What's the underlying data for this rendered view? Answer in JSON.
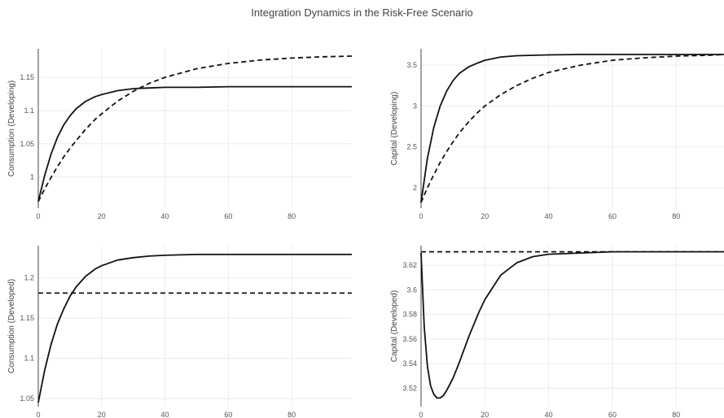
{
  "title": "Integration Dynamics in the Risk-Free Scenario",
  "chart_data": [
    {
      "type": "line",
      "ylabel": "Consumption (Developing)",
      "xlim": [
        0,
        99
      ],
      "ylim": [
        0.953,
        1.193
      ],
      "xticks": [
        0,
        20,
        40,
        60,
        80
      ],
      "yticks": [
        1,
        1.05,
        1.1,
        1.15
      ],
      "ytick_labels": [
        "1",
        "1.05",
        "1.1",
        "1.15"
      ],
      "series": [
        {
          "style": "solid",
          "x": [
            0,
            2,
            4,
            6,
            8,
            10,
            12,
            15,
            18,
            20,
            25,
            30,
            35,
            40,
            50,
            60,
            70,
            80,
            90,
            99
          ],
          "y": [
            0.963,
            1.002,
            1.034,
            1.059,
            1.078,
            1.092,
            1.103,
            1.114,
            1.121,
            1.124,
            1.13,
            1.133,
            1.134,
            1.135,
            1.135,
            1.136,
            1.136,
            1.136,
            1.136,
            1.136
          ]
        },
        {
          "style": "dashed",
          "x": [
            0,
            2,
            4,
            6,
            8,
            10,
            12,
            15,
            18,
            20,
            25,
            30,
            35,
            40,
            50,
            60,
            70,
            80,
            90,
            99
          ],
          "y": [
            0.963,
            0.982,
            0.999,
            1.015,
            1.03,
            1.043,
            1.055,
            1.072,
            1.087,
            1.095,
            1.114,
            1.129,
            1.141,
            1.15,
            1.163,
            1.171,
            1.176,
            1.179,
            1.181,
            1.182
          ]
        }
      ]
    },
    {
      "type": "line",
      "ylabel": "Capital (Developing)",
      "xlim": [
        0,
        95
      ],
      "ylim": [
        1.75,
        3.7
      ],
      "xticks": [
        0,
        20,
        40,
        60,
        80
      ],
      "yticks": [
        2,
        2.5,
        3,
        3.5
      ],
      "ytick_labels": [
        "2",
        "2.5",
        "3",
        "3.5"
      ],
      "series": [
        {
          "style": "solid",
          "x": [
            0,
            2,
            4,
            6,
            8,
            10,
            12,
            15,
            18,
            20,
            25,
            30,
            35,
            40,
            50,
            60,
            70,
            80,
            90,
            95
          ],
          "y": [
            1.82,
            2.36,
            2.74,
            3.0,
            3.18,
            3.31,
            3.4,
            3.48,
            3.53,
            3.56,
            3.6,
            3.615,
            3.62,
            3.625,
            3.63,
            3.63,
            3.63,
            3.63,
            3.63,
            3.63
          ]
        },
        {
          "style": "dashed",
          "x": [
            0,
            2,
            4,
            6,
            8,
            10,
            12,
            15,
            18,
            20,
            25,
            30,
            35,
            40,
            50,
            60,
            70,
            80,
            90,
            95
          ],
          "y": [
            1.82,
            2.0,
            2.16,
            2.31,
            2.44,
            2.56,
            2.67,
            2.81,
            2.93,
            3.0,
            3.14,
            3.25,
            3.34,
            3.41,
            3.5,
            3.56,
            3.59,
            3.61,
            3.62,
            3.63
          ]
        }
      ]
    },
    {
      "type": "line",
      "ylabel": "Consumption (Developed)",
      "xlim": [
        0,
        99
      ],
      "ylim": [
        1.04,
        1.24
      ],
      "xticks": [
        0,
        20,
        40,
        60,
        80
      ],
      "yticks": [
        1.05,
        1.1,
        1.15,
        1.2
      ],
      "ytick_labels": [
        "1.05",
        "1.1",
        "1.15",
        "1.2"
      ],
      "series": [
        {
          "style": "solid",
          "x": [
            0,
            2,
            4,
            6,
            8,
            10,
            12,
            15,
            18,
            20,
            25,
            30,
            35,
            40,
            50,
            60,
            70,
            80,
            90,
            99
          ],
          "y": [
            1.045,
            1.085,
            1.117,
            1.142,
            1.161,
            1.177,
            1.189,
            1.202,
            1.211,
            1.215,
            1.222,
            1.225,
            1.227,
            1.228,
            1.229,
            1.229,
            1.229,
            1.229,
            1.229,
            1.229
          ]
        },
        {
          "style": "dashed",
          "x": [
            0,
            99
          ],
          "y": [
            1.181,
            1.181
          ]
        }
      ]
    },
    {
      "type": "line",
      "ylabel": "Capital (Developed)",
      "xlim": [
        0,
        95
      ],
      "ylim": [
        3.505,
        3.636
      ],
      "xticks": [
        0,
        20,
        40,
        60,
        80
      ],
      "yticks": [
        3.52,
        3.54,
        3.56,
        3.58,
        3.6,
        3.62
      ],
      "ytick_labels": [
        "3.52",
        "3.54",
        "3.56",
        "3.58",
        "3.6",
        "3.62"
      ],
      "series": [
        {
          "style": "solid",
          "x": [
            0,
            1,
            2,
            3,
            4,
            5,
            6,
            7,
            8,
            10,
            12,
            15,
            18,
            20,
            25,
            30,
            35,
            40,
            50,
            60,
            70,
            80,
            90,
            95
          ],
          "y": [
            3.63,
            3.57,
            3.538,
            3.522,
            3.515,
            3.512,
            3.512,
            3.514,
            3.518,
            3.528,
            3.541,
            3.562,
            3.581,
            3.592,
            3.612,
            3.622,
            3.627,
            3.629,
            3.63,
            3.631,
            3.631,
            3.631,
            3.631,
            3.631
          ]
        },
        {
          "style": "dashed",
          "x": [
            0,
            95
          ],
          "y": [
            3.631,
            3.631
          ]
        }
      ]
    }
  ]
}
